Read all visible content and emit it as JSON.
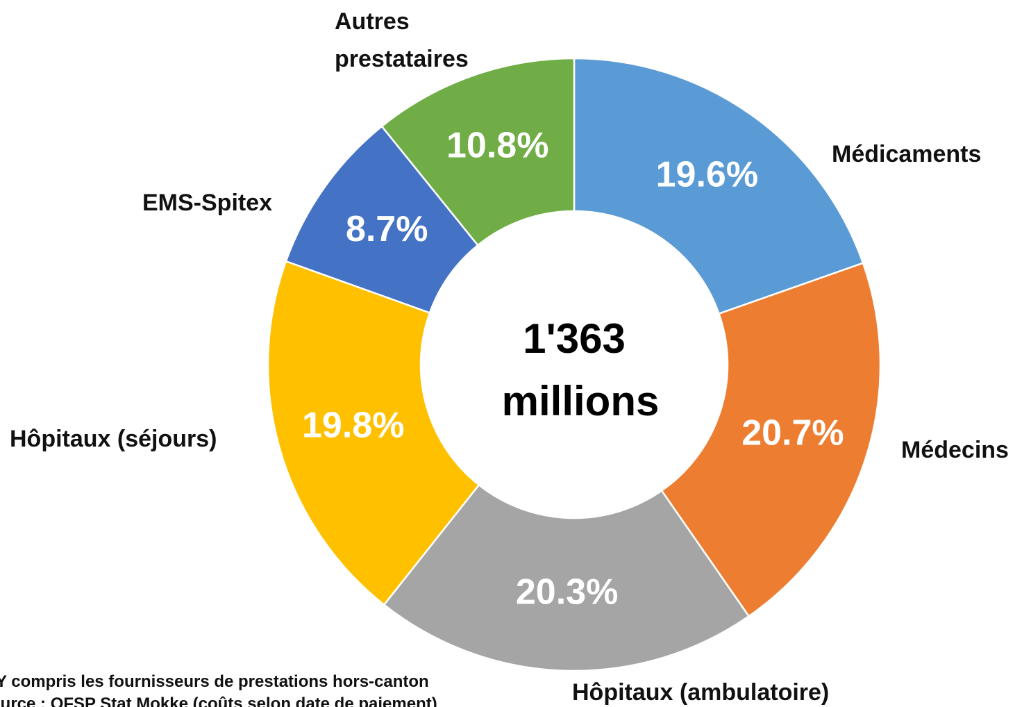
{
  "chart_data": {
    "type": "donut",
    "center_label": [
      "1'363",
      "millions"
    ],
    "categories": [
      "Médicaments",
      "Médecins",
      "Hôpitaux (ambulatoire)",
      "Hôpitaux (séjours)",
      "EMS-Spitex",
      "Autres prestataires"
    ],
    "values": [
      19.6,
      20.7,
      20.3,
      19.8,
      8.7,
      10.8
    ],
    "value_labels": [
      "19.6%",
      "20.7%",
      "20.3%",
      "19.8%",
      "8.7%",
      "10.8%"
    ],
    "colors": [
      "#5b9bd5",
      "#ed7d31",
      "#a5a5a5",
      "#ffc000",
      "#4472c4",
      "#70ad47"
    ],
    "notes": [
      "Y compris les fournisseurs de prestations hors-canton",
      "Source : OFSP Stat Mokke (coûts selon date de paiement)"
    ]
  }
}
